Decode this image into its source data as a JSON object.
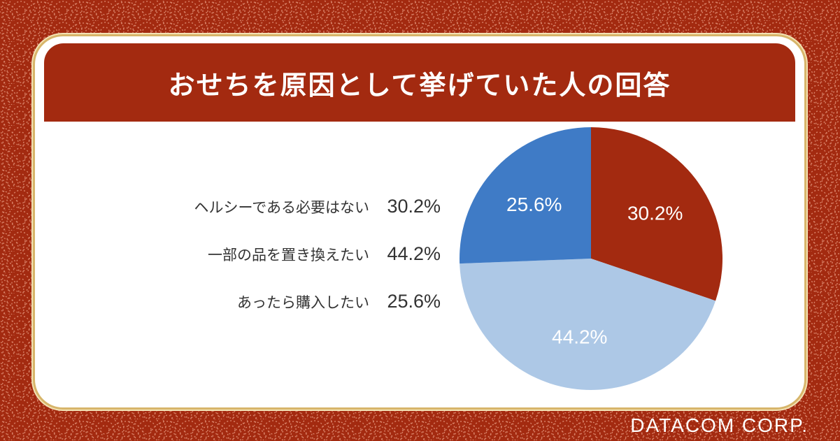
{
  "title": "おせちを原因として挙げていた人の回答",
  "brand": "DATACOM CORP.",
  "colors": {
    "background": "#a32a10",
    "gold": "#d7b56a",
    "wave": "#d98268"
  },
  "chart_data": {
    "type": "pie",
    "title": "おせちを原因として挙げていた人の回答",
    "slices": [
      {
        "label": "ヘルシーである必要はない",
        "value": 30.2,
        "display": "30.2%",
        "color": "#a32a10"
      },
      {
        "label": "一部の品を置き換えたい",
        "value": 44.2,
        "display": "44.2%",
        "color": "#adc8e6"
      },
      {
        "label": "あったら購入したい",
        "value": 25.6,
        "display": "25.6%",
        "color": "#3f7bc6"
      }
    ],
    "legend_position": "left"
  }
}
